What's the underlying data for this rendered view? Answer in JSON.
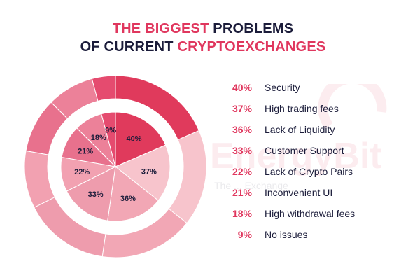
{
  "header": {
    "line1_accent": "THE BIGGEST",
    "line1_rest": "PROBLEMS",
    "line2_rest": "OF CURRENT",
    "line2_accent": "CRYPTOEXCHANGES"
  },
  "watermark": {
    "brand": "EnergyBit",
    "tagline": "The ... Exchange"
  },
  "colors": {
    "accent": "#e0375e",
    "text_dark": "#1b1c3a",
    "slices": [
      "#e03a5c",
      "#f7c4cc",
      "#f2a7b5",
      "#ee9cad",
      "#f2a1b1",
      "#e8718d",
      "#ec8199",
      "#e54b6f"
    ]
  },
  "chart_data": {
    "type": "pie",
    "title": "THE BIGGEST PROBLEMS OF CURRENT CRYPTOEXCHANGES",
    "categories": [
      "Security",
      "High trading fees",
      "Lack of Liquidity",
      "Customer Support",
      "Lack of Crypto Pairs",
      "Inconvenient UI",
      "High withdrawal fees",
      "No issues"
    ],
    "values": [
      40,
      37,
      36,
      33,
      22,
      21,
      18,
      9
    ],
    "value_labels": [
      "40%",
      "37%",
      "36%",
      "33%",
      "22%",
      "21%",
      "18%",
      "9%"
    ],
    "legend_position": "right"
  }
}
